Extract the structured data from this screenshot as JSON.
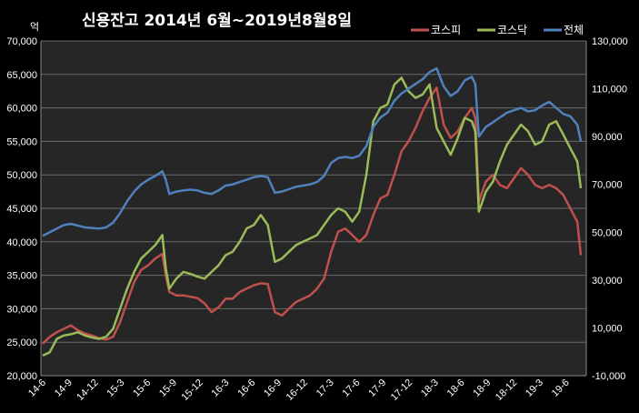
{
  "chart_data": {
    "type": "line",
    "title": "신용잔고 2014년 6월~2019년8월8일",
    "left_unit": "억",
    "y_left": {
      "min": 20000,
      "max": 70000,
      "step": 5000,
      "ticks": [
        "20,000",
        "25,000",
        "30,000",
        "35,000",
        "40,000",
        "45,000",
        "50,000",
        "55,000",
        "60,000",
        "65,000",
        "70,000"
      ]
    },
    "y_right": {
      "min": -10000,
      "max": 130000,
      "step": 20000,
      "ticks": [
        "-10,000",
        "10,000",
        "30,000",
        "50,000",
        "70,000",
        "90,000",
        "110,000",
        "130,000"
      ]
    },
    "x": [
      "14-6",
      "14-9",
      "14-12",
      "15-3",
      "15-6",
      "15-9",
      "15-12",
      "16-3",
      "16-6",
      "16-9",
      "16-12",
      "17-3",
      "17-6",
      "17-9",
      "17-12",
      "18-3",
      "18-6",
      "18-9",
      "18-12",
      "19-3",
      "19-6"
    ],
    "x_end": "19-8",
    "legend_position": "top-right",
    "grid": "horizontal",
    "series": [
      {
        "name": "코스피",
        "color": "#c0504d",
        "axis": "left",
        "points": [
          [
            0,
            24800
          ],
          [
            1,
            25800
          ],
          [
            2,
            26500
          ],
          [
            3,
            27000
          ],
          [
            4,
            27500
          ],
          [
            5,
            26800
          ],
          [
            6,
            26300
          ],
          [
            7,
            26000
          ],
          [
            8,
            25600
          ],
          [
            9,
            25400
          ],
          [
            10,
            25800
          ],
          [
            11,
            28000
          ],
          [
            12,
            31000
          ],
          [
            13,
            34000
          ],
          [
            14,
            35800
          ],
          [
            15,
            36500
          ],
          [
            16,
            37500
          ],
          [
            17,
            38200
          ],
          [
            17.5,
            35000
          ],
          [
            18,
            32500
          ],
          [
            19,
            32000
          ],
          [
            20,
            32000
          ],
          [
            21,
            31800
          ],
          [
            22,
            31600
          ],
          [
            23,
            30800
          ],
          [
            24,
            29500
          ],
          [
            25,
            30200
          ],
          [
            26,
            31500
          ],
          [
            27,
            31500
          ],
          [
            28,
            32500
          ],
          [
            29,
            33000
          ],
          [
            30,
            33500
          ],
          [
            31,
            33800
          ],
          [
            32,
            33700
          ],
          [
            33,
            29500
          ],
          [
            34,
            29000
          ],
          [
            35,
            30000
          ],
          [
            36,
            31000
          ],
          [
            37,
            31500
          ],
          [
            38,
            32000
          ],
          [
            39,
            33000
          ],
          [
            40,
            34500
          ],
          [
            41,
            38500
          ],
          [
            42,
            41500
          ],
          [
            43,
            42000
          ],
          [
            44,
            41000
          ],
          [
            45,
            40000
          ],
          [
            46,
            41000
          ],
          [
            47,
            44000
          ],
          [
            48,
            46500
          ],
          [
            49,
            47000
          ],
          [
            50,
            50000
          ],
          [
            51,
            53500
          ],
          [
            52,
            55000
          ],
          [
            53,
            57000
          ],
          [
            54,
            59500
          ],
          [
            55,
            61500
          ],
          [
            56,
            63000
          ],
          [
            57,
            57500
          ],
          [
            58,
            55500
          ],
          [
            59,
            56500
          ],
          [
            60,
            58500
          ],
          [
            61,
            60000
          ],
          [
            61.5,
            58500
          ],
          [
            62,
            46000
          ],
          [
            63,
            49000
          ],
          [
            64,
            50000
          ],
          [
            65,
            48500
          ],
          [
            66,
            48000
          ],
          [
            67,
            49500
          ],
          [
            68,
            51000
          ],
          [
            69,
            50000
          ],
          [
            70,
            48500
          ],
          [
            71,
            48000
          ],
          [
            72,
            48500
          ],
          [
            73,
            48000
          ],
          [
            74,
            47000
          ],
          [
            75,
            45000
          ],
          [
            76,
            43000
          ],
          [
            76.5,
            38000
          ]
        ]
      },
      {
        "name": "코스닥",
        "color": "#9bbb59",
        "axis": "left",
        "points": [
          [
            0,
            23000
          ],
          [
            1,
            23500
          ],
          [
            2,
            25500
          ],
          [
            3,
            26000
          ],
          [
            4,
            26200
          ],
          [
            5,
            26500
          ],
          [
            6,
            26000
          ],
          [
            7,
            25700
          ],
          [
            8,
            25500
          ],
          [
            9,
            25800
          ],
          [
            10,
            27000
          ],
          [
            11,
            30000
          ],
          [
            12,
            33000
          ],
          [
            13,
            35500
          ],
          [
            14,
            37500
          ],
          [
            15,
            38500
          ],
          [
            16,
            39500
          ],
          [
            17,
            41000
          ],
          [
            17.5,
            36000
          ],
          [
            18,
            33000
          ],
          [
            19,
            34500
          ],
          [
            20,
            35500
          ],
          [
            21,
            35200
          ],
          [
            22,
            34800
          ],
          [
            23,
            34500
          ],
          [
            24,
            35500
          ],
          [
            25,
            36500
          ],
          [
            26,
            38000
          ],
          [
            27,
            38500
          ],
          [
            28,
            40000
          ],
          [
            29,
            42000
          ],
          [
            30,
            42500
          ],
          [
            31,
            44000
          ],
          [
            32,
            42500
          ],
          [
            33,
            37000
          ],
          [
            34,
            37500
          ],
          [
            35,
            38500
          ],
          [
            36,
            39500
          ],
          [
            37,
            40000
          ],
          [
            38,
            40500
          ],
          [
            39,
            41000
          ],
          [
            40,
            42500
          ],
          [
            41,
            44000
          ],
          [
            42,
            45000
          ],
          [
            43,
            44500
          ],
          [
            44,
            43000
          ],
          [
            45,
            44500
          ],
          [
            46,
            50000
          ],
          [
            47,
            58000
          ],
          [
            48,
            60000
          ],
          [
            49,
            60500
          ],
          [
            50,
            63500
          ],
          [
            51,
            64500
          ],
          [
            52,
            62500
          ],
          [
            53,
            61500
          ],
          [
            54,
            62000
          ],
          [
            55,
            63500
          ],
          [
            56,
            57000
          ],
          [
            57,
            55000
          ],
          [
            58,
            53000
          ],
          [
            59,
            55500
          ],
          [
            60,
            58500
          ],
          [
            61,
            58000
          ],
          [
            61.5,
            56500
          ],
          [
            62,
            44500
          ],
          [
            63,
            47500
          ],
          [
            64,
            49000
          ],
          [
            65,
            52000
          ],
          [
            66,
            54500
          ],
          [
            67,
            56000
          ],
          [
            68,
            57500
          ],
          [
            69,
            56500
          ],
          [
            70,
            54500
          ],
          [
            71,
            55000
          ],
          [
            72,
            57500
          ],
          [
            73,
            58000
          ],
          [
            74,
            56000
          ],
          [
            75,
            54000
          ],
          [
            76,
            52000
          ],
          [
            76.5,
            48000
          ]
        ]
      },
      {
        "name": "전체",
        "color": "#4f81bd",
        "axis": "right",
        "points": [
          [
            0,
            48500
          ],
          [
            1,
            50000
          ],
          [
            2,
            51500
          ],
          [
            3,
            53000
          ],
          [
            4,
            53500
          ],
          [
            5,
            52800
          ],
          [
            6,
            52000
          ],
          [
            7,
            51800
          ],
          [
            8,
            51500
          ],
          [
            9,
            52000
          ],
          [
            10,
            54000
          ],
          [
            11,
            58000
          ],
          [
            12,
            63000
          ],
          [
            13,
            67000
          ],
          [
            14,
            70000
          ],
          [
            15,
            72000
          ],
          [
            16,
            73500
          ],
          [
            17,
            75500
          ],
          [
            17.5,
            72000
          ],
          [
            18,
            66000
          ],
          [
            19,
            67000
          ],
          [
            20,
            67500
          ],
          [
            21,
            67800
          ],
          [
            22,
            67500
          ],
          [
            23,
            66500
          ],
          [
            24,
            66000
          ],
          [
            25,
            67500
          ],
          [
            26,
            69500
          ],
          [
            27,
            70000
          ],
          [
            28,
            71000
          ],
          [
            29,
            72000
          ],
          [
            30,
            73000
          ],
          [
            31,
            73500
          ],
          [
            32,
            73000
          ],
          [
            33,
            66500
          ],
          [
            34,
            67000
          ],
          [
            35,
            68000
          ],
          [
            36,
            69000
          ],
          [
            37,
            69500
          ],
          [
            38,
            70000
          ],
          [
            39,
            71000
          ],
          [
            40,
            73500
          ],
          [
            41,
            79000
          ],
          [
            42,
            81000
          ],
          [
            43,
            81500
          ],
          [
            44,
            81000
          ],
          [
            45,
            82000
          ],
          [
            46,
            86000
          ],
          [
            47,
            94000
          ],
          [
            48,
            98000
          ],
          [
            49,
            100000
          ],
          [
            50,
            105000
          ],
          [
            51,
            108000
          ],
          [
            52,
            110000
          ],
          [
            53,
            112000
          ],
          [
            54,
            114000
          ],
          [
            55,
            117000
          ],
          [
            56,
            118500
          ],
          [
            57,
            111000
          ],
          [
            58,
            107000
          ],
          [
            59,
            109000
          ],
          [
            60,
            113500
          ],
          [
            61,
            115000
          ],
          [
            61.5,
            112000
          ],
          [
            62,
            90000
          ],
          [
            63,
            94000
          ],
          [
            64,
            96000
          ],
          [
            65,
            98000
          ],
          [
            66,
            100000
          ],
          [
            67,
            101000
          ],
          [
            68,
            102000
          ],
          [
            69,
            100500
          ],
          [
            70,
            101000
          ],
          [
            71,
            103000
          ],
          [
            72,
            104500
          ],
          [
            73,
            102000
          ],
          [
            74,
            99500
          ],
          [
            75,
            98500
          ],
          [
            76,
            95000
          ],
          [
            76.5,
            88000
          ]
        ]
      }
    ]
  }
}
